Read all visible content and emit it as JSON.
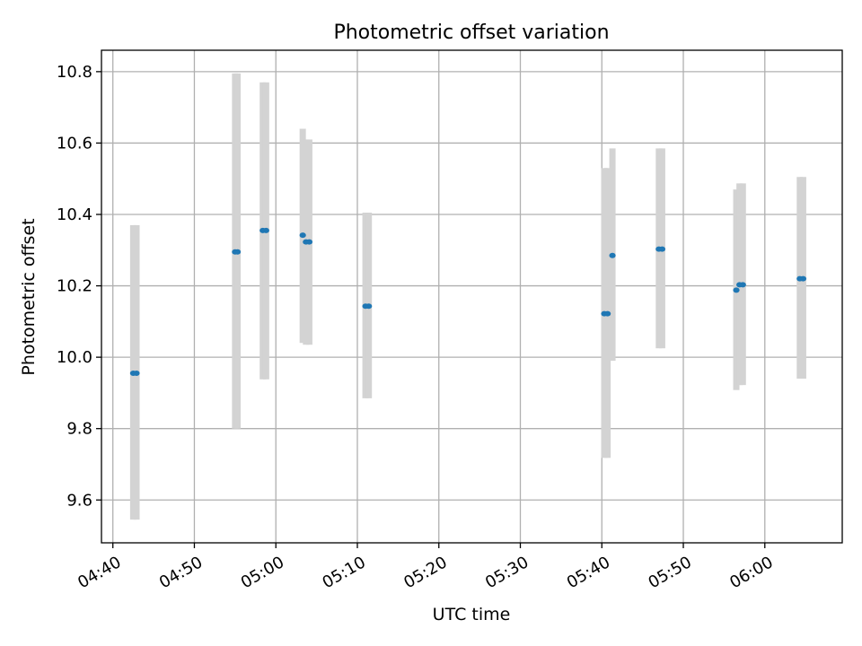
{
  "chart_data": {
    "type": "scatter",
    "title": "Photometric offset variation",
    "xlabel": "UTC time",
    "ylabel": "Photometric offset",
    "x_unit": "minutes",
    "xlim": [
      "04:38.6",
      "06:09.5"
    ],
    "ylim": [
      9.48,
      10.86
    ],
    "grid": true,
    "x_ticks": [
      "04:40",
      "04:50",
      "05:00",
      "05:10",
      "05:20",
      "05:30",
      "05:40",
      "05:50",
      "06:00"
    ],
    "y_ticks": [
      "9.6",
      "9.8",
      "10.0",
      "10.2",
      "10.4",
      "10.6",
      "10.8"
    ],
    "colors": {
      "point": "#1f77b4",
      "errorbar": "#d3d3d3",
      "grid": "#b0b0b0"
    },
    "points": [
      {
        "x": "04:42.5",
        "y": 9.955,
        "lower": 9.545,
        "upper": 10.37
      },
      {
        "x": "04:42.9",
        "y": 9.955,
        "lower": 9.545,
        "upper": 10.37
      },
      {
        "x": "04:55.0",
        "y": 10.295,
        "lower": 9.8,
        "upper": 10.795
      },
      {
        "x": "04:55.3",
        "y": 10.295,
        "lower": 9.8,
        "upper": 10.795
      },
      {
        "x": "04:58.4",
        "y": 10.355,
        "lower": 9.938,
        "upper": 10.77
      },
      {
        "x": "04:58.8",
        "y": 10.355,
        "lower": 9.938,
        "upper": 10.77
      },
      {
        "x": "05:03.3",
        "y": 10.342,
        "lower": 10.04,
        "upper": 10.64
      },
      {
        "x": "05:03.7",
        "y": 10.323,
        "lower": 10.035,
        "upper": 10.61
      },
      {
        "x": "05:04.1",
        "y": 10.323,
        "lower": 10.035,
        "upper": 10.61
      },
      {
        "x": "05:11.0",
        "y": 10.143,
        "lower": 9.885,
        "upper": 10.405
      },
      {
        "x": "05:11.4",
        "y": 10.143,
        "lower": 9.885,
        "upper": 10.405
      },
      {
        "x": "05:40.3",
        "y": 10.122,
        "lower": 9.718,
        "upper": 10.53
      },
      {
        "x": "05:40.7",
        "y": 10.122,
        "lower": 9.718,
        "upper": 10.53
      },
      {
        "x": "05:41.3",
        "y": 10.285,
        "lower": 9.99,
        "upper": 10.585
      },
      {
        "x": "05:47.0",
        "y": 10.303,
        "lower": 10.025,
        "upper": 10.585
      },
      {
        "x": "05:47.4",
        "y": 10.303,
        "lower": 10.025,
        "upper": 10.585
      },
      {
        "x": "05:56.5",
        "y": 10.188,
        "lower": 9.908,
        "upper": 10.47
      },
      {
        "x": "05:56.9",
        "y": 10.203,
        "lower": 9.922,
        "upper": 10.487
      },
      {
        "x": "05:57.3",
        "y": 10.203,
        "lower": 9.922,
        "upper": 10.487
      },
      {
        "x": "06:04.3",
        "y": 10.22,
        "lower": 9.94,
        "upper": 10.505
      },
      {
        "x": "06:04.7",
        "y": 10.22,
        "lower": 9.94,
        "upper": 10.505
      }
    ]
  }
}
